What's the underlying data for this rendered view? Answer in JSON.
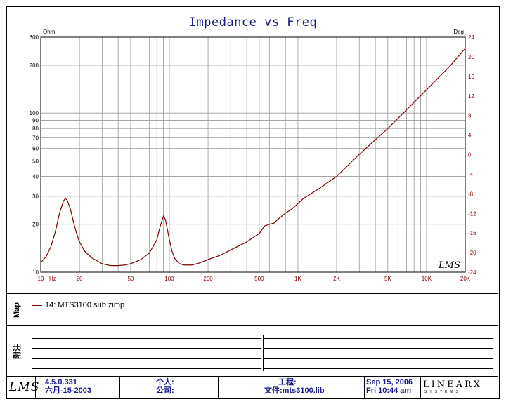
{
  "chart_data": {
    "type": "line",
    "title": "Impedance vs Freq",
    "x_scale": "log",
    "xlim": [
      10,
      20000
    ],
    "y_scale": "log",
    "ylim": [
      10,
      300
    ],
    "y2lim": [
      -24,
      24
    ],
    "y_unit": "Ohm",
    "y2_unit": "Deg",
    "x_ticks": [
      {
        "value": 10,
        "label": "10"
      },
      {
        "value": 20,
        "label": "20"
      },
      {
        "value": 50,
        "label": "50"
      },
      {
        "value": 100,
        "label": "100"
      },
      {
        "value": 200,
        "label": "200"
      },
      {
        "value": 500,
        "label": "500"
      },
      {
        "value": 1000,
        "label": "1K"
      },
      {
        "value": 2000,
        "label": "2K"
      },
      {
        "value": 5000,
        "label": "5K"
      },
      {
        "value": 10000,
        "label": "10K"
      },
      {
        "value": 20000,
        "label": "20K"
      }
    ],
    "x_unit_label": "Hz",
    "y_ticks": [
      {
        "value": 10,
        "label": "10"
      },
      {
        "value": 20,
        "label": "20"
      },
      {
        "value": 30,
        "label": "30"
      },
      {
        "value": 40,
        "label": "40"
      },
      {
        "value": 50,
        "label": "50"
      },
      {
        "value": 60,
        "label": "60"
      },
      {
        "value": 70,
        "label": "70"
      },
      {
        "value": 80,
        "label": "80"
      },
      {
        "value": 90,
        "label": "90"
      },
      {
        "value": 100,
        "label": "100"
      },
      {
        "value": 200,
        "label": "200"
      },
      {
        "value": 300,
        "label": "300"
      }
    ],
    "y2_ticks": [
      24,
      20,
      16,
      12,
      8,
      4,
      0,
      -4,
      -8,
      -12,
      -16,
      -20,
      -24
    ],
    "grid": true,
    "series": [
      {
        "name": "14: MTS3100 sub zimp",
        "color": "#800000",
        "points": [
          [
            10,
            11.5
          ],
          [
            11,
            12.5
          ],
          [
            12,
            14.5
          ],
          [
            13,
            18
          ],
          [
            14,
            23.5
          ],
          [
            15,
            28
          ],
          [
            15.5,
            29
          ],
          [
            16,
            28.5
          ],
          [
            17,
            25
          ],
          [
            18,
            20.5
          ],
          [
            19,
            17.5
          ],
          [
            20,
            15.5
          ],
          [
            22,
            13.5
          ],
          [
            25,
            12.3
          ],
          [
            30,
            11.3
          ],
          [
            35,
            11
          ],
          [
            40,
            11
          ],
          [
            45,
            11.1
          ],
          [
            50,
            11.3
          ],
          [
            60,
            12
          ],
          [
            70,
            13.2
          ],
          [
            80,
            16
          ],
          [
            85,
            19.5
          ],
          [
            90,
            22.5
          ],
          [
            93,
            21.5
          ],
          [
            96,
            19
          ],
          [
            100,
            16
          ],
          [
            105,
            13.5
          ],
          [
            110,
            12.2
          ],
          [
            120,
            11.3
          ],
          [
            130,
            11.1
          ],
          [
            150,
            11.1
          ],
          [
            170,
            11.4
          ],
          [
            200,
            12
          ],
          [
            250,
            12.8
          ],
          [
            300,
            13.8
          ],
          [
            400,
            15.5
          ],
          [
            500,
            17.5
          ],
          [
            550,
            19.5
          ],
          [
            600,
            20
          ],
          [
            650,
            20.3
          ],
          [
            700,
            21.5
          ],
          [
            800,
            23.5
          ],
          [
            900,
            25
          ],
          [
            1000,
            27
          ],
          [
            1100,
            29
          ],
          [
            1500,
            34
          ],
          [
            2000,
            40
          ],
          [
            3000,
            55
          ],
          [
            5000,
            80
          ],
          [
            7000,
            105
          ],
          [
            10000,
            140
          ],
          [
            15000,
            195
          ],
          [
            20000,
            255
          ]
        ]
      }
    ]
  },
  "legend": {
    "panel_label": "Map",
    "entry": "14: MTS3100 sub zimp"
  },
  "notes": {
    "panel_label": "附注"
  },
  "footer": {
    "logo": "LMS",
    "version": "4.5.0.331",
    "version_date": "六月-15-2003",
    "personal_label": "个人:",
    "company_label": "公司:",
    "project_label": "工程:",
    "file_label": "文件:mts3100.lib",
    "date": "Sep 15, 2006",
    "time": "Fri 10:44 am",
    "brand": "LINEARX",
    "brand_sub": "SYSTEMS"
  },
  "plot_logo": "LMS"
}
